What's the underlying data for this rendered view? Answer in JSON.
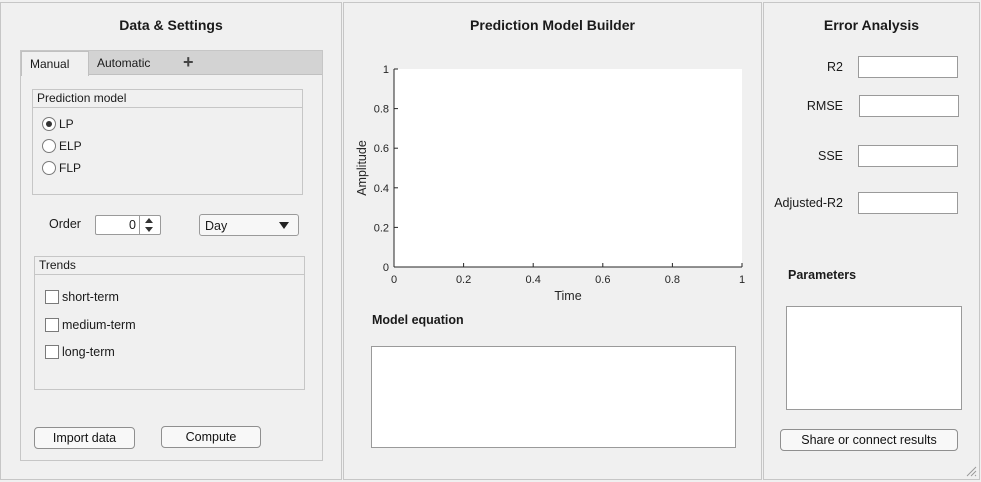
{
  "left_panel": {
    "title": "Data & Settings",
    "tabs": [
      {
        "label": "Manual",
        "active": true
      },
      {
        "label": "Automatic",
        "active": false
      }
    ],
    "add_tab_glyph": "+",
    "prediction_model": {
      "title": "Prediction model",
      "options": [
        {
          "label": "LP",
          "selected": true
        },
        {
          "label": "ELP",
          "selected": false
        },
        {
          "label": "FLP",
          "selected": false
        }
      ]
    },
    "order": {
      "label": "Order",
      "value": "0"
    },
    "period_dropdown": {
      "value": "Day"
    },
    "trends": {
      "title": "Trends",
      "items": [
        {
          "label": "short-term",
          "checked": false
        },
        {
          "label": "medium-term",
          "checked": false
        },
        {
          "label": "long-term",
          "checked": false
        }
      ]
    },
    "import_button": "Import data",
    "compute_button": "Compute"
  },
  "middle_panel": {
    "title": "Prediction Model Builder",
    "model_equation_label": "Model equation",
    "model_equation_value": ""
  },
  "chart_data": {
    "type": "line",
    "title": "",
    "xlabel": "Time",
    "ylabel": "Amplitude",
    "xlim": [
      0,
      1
    ],
    "ylim": [
      0,
      1
    ],
    "xticks": [
      "0",
      "0.2",
      "0.4",
      "0.6",
      "0.8",
      "1"
    ],
    "yticks": [
      "0",
      "0.2",
      "0.4",
      "0.6",
      "0.8",
      "1"
    ],
    "series": [],
    "grid": false
  },
  "right_panel": {
    "title": "Error Analysis",
    "metrics": [
      {
        "label": "R2",
        "value": ""
      },
      {
        "label": "RMSE",
        "value": ""
      },
      {
        "label": "SSE",
        "value": ""
      },
      {
        "label": "Adjusted-R2",
        "value": ""
      }
    ],
    "parameters_label": "Parameters",
    "parameters_value": "",
    "share_button": "Share or connect results"
  },
  "colors": {
    "background": "#f0f0f0",
    "tab_strip": "#d3d3d3",
    "border": "#c6c6c6",
    "plot_background": "#ffffff"
  }
}
